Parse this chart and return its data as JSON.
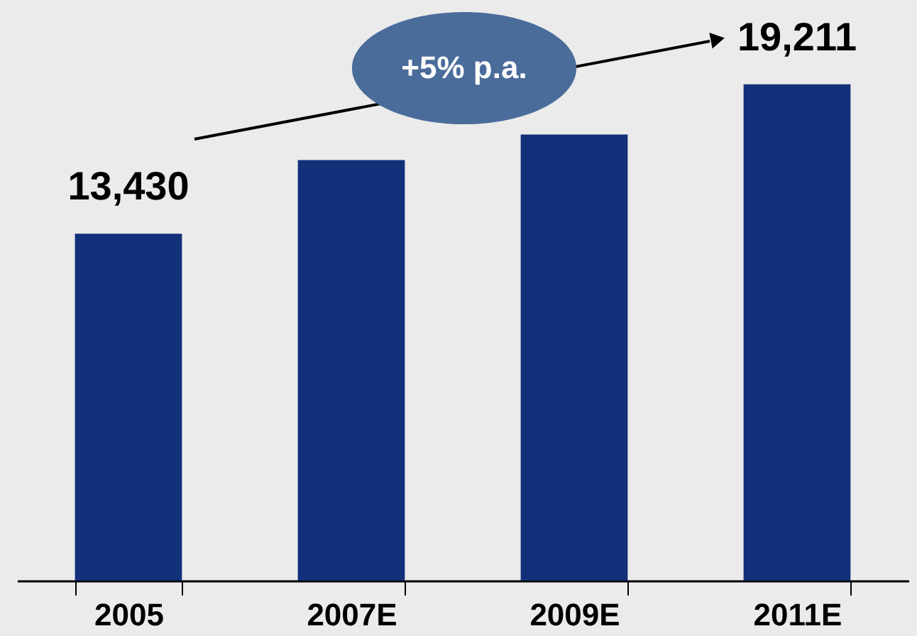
{
  "chart_data": {
    "type": "bar",
    "categories": [
      "2005",
      "2007E",
      "2009E",
      "2011E"
    ],
    "values": [
      13430,
      16280,
      17270,
      19211
    ],
    "value_labels": [
      "13,430",
      null,
      null,
      "19,211"
    ],
    "color": "#12317a",
    "annotations": [
      "+5% p.a."
    ]
  }
}
